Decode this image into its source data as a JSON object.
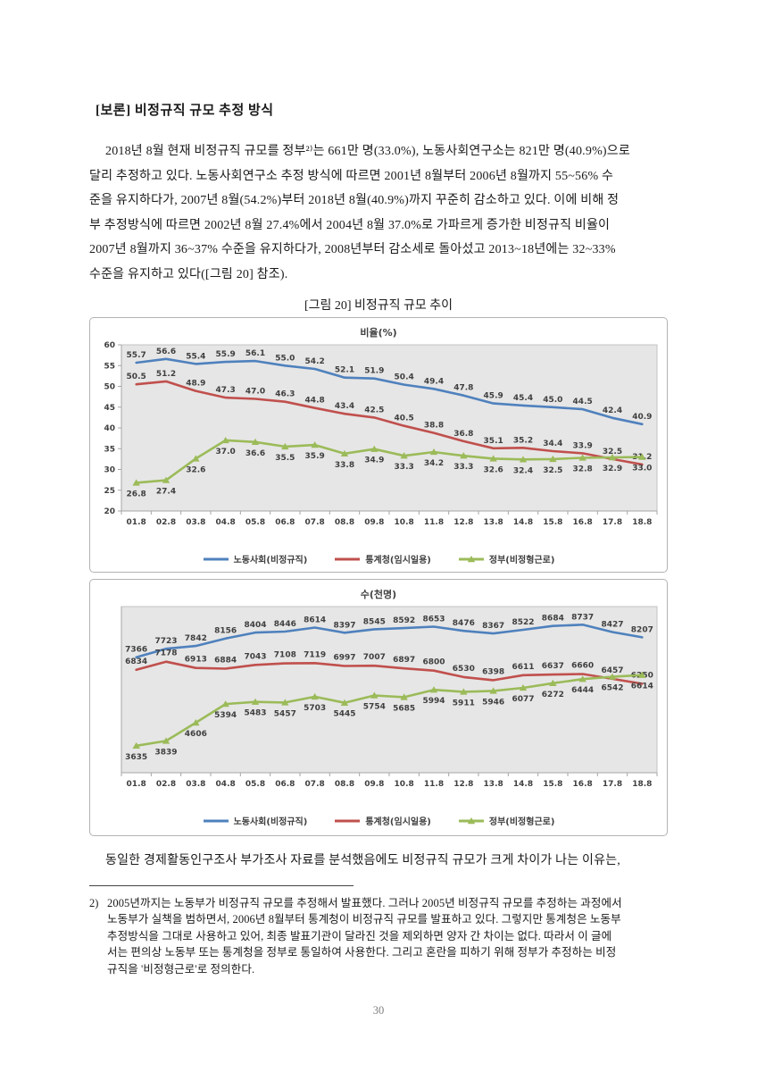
{
  "page": {
    "heading": "[보론] 비정규직 규모 추정 방식",
    "para1_lines": [
      "2018년 8월 현재 비정규직 규모를 정부²⁾는 661만 명(33.0%), 노동사회연구소는 821만 명(40.9%)으로",
      "달리 추정하고 있다. 노동사회연구소 추정 방식에 따르면 2001년 8월부터 2006년 8월까지 55~56% 수",
      "준을 유지하다가, 2007년 8월(54.2%)부터 2018년 8월(40.9%)까지 꾸준히 감소하고 있다. 이에 비해 정",
      "부 추정방식에 따르면 2002년 8월 27.4%에서 2004년 8월 37.0%로 가파르게 증가한 비정규직 비율이",
      "2007년 8월까지 36~37% 수준을 유지하다가, 2008년부터 감소세로 돌아섰고 2013~18년에는 32~33%",
      "수준을 유지하고 있다([그림 20] 참조)."
    ],
    "figure_caption": "[그림 20] 비정규직 규모 추이",
    "paragraph2": "동일한 경제활동인구조사 부가조사 자료를 분석했음에도 비정규직 규모가 크게 차이가 나는 이유는,",
    "footnote_marker": "2)",
    "footnote_lines": [
      "2005년까지는 노동부가 비정규직 규모를 추정해서 발표했다. 그러나 2005년 비정규직 규모를 추정하는 과정에서",
      "노동부가 실책을 범하면서, 2006년 8월부터 통계청이 비정규직 규모를 발표하고 있다. 그렇지만 통계청은 노동부",
      "추정방식을 그대로 사용하고 있어, 최종 발표기관이 달라진 것을 제외하면 양자 간 차이는 없다. 따라서 이 글에",
      "서는 편의상 노동부 또는 통계청을 정부로 통일하여 사용한다. 그리고 혼란을 피하기 위해 정부가 추정하는 비정",
      "규직을 '비정형근로'로 정의한다."
    ],
    "page_number": "30"
  },
  "chart_data": [
    {
      "type": "line",
      "title": "비율(%)",
      "categories": [
        "01.8",
        "02.8",
        "03.8",
        "04.8",
        "05.8",
        "06.8",
        "07.8",
        "08.8",
        "09.8",
        "10.8",
        "11.8",
        "12.8",
        "13.8",
        "14.8",
        "15.8",
        "16.8",
        "17.8",
        "18.8"
      ],
      "series": [
        {
          "name": "노동사회(비정규직)",
          "color": "#4F81BD",
          "label_dy": -6,
          "values": [
            55.7,
            56.6,
            55.4,
            55.9,
            56.1,
            55.0,
            54.2,
            52.1,
            51.9,
            50.4,
            49.4,
            47.8,
            45.9,
            45.4,
            45.0,
            44.5,
            42.4,
            40.9
          ]
        },
        {
          "name": "통계청(임시일용)",
          "color": "#C0504D",
          "label_dy": -6,
          "values": [
            50.5,
            51.2,
            48.9,
            47.3,
            47.0,
            46.3,
            44.8,
            43.4,
            42.5,
            40.5,
            38.8,
            36.8,
            35.1,
            35.2,
            34.4,
            33.9,
            32.5,
            31.2
          ]
        },
        {
          "name": "정부(비정형근로)",
          "color": "#9BBB59",
          "marker": "triangle",
          "label_dy": 15,
          "values": [
            26.8,
            27.4,
            32.6,
            37.0,
            36.6,
            35.5,
            35.9,
            33.8,
            34.9,
            33.3,
            34.2,
            33.3,
            32.6,
            32.4,
            32.5,
            32.8,
            32.9,
            33.0
          ]
        }
      ],
      "ylim": [
        20,
        60
      ],
      "yticks": [
        20,
        25,
        30,
        35,
        40,
        45,
        50,
        55,
        60
      ],
      "label_format": "fixed1",
      "legend_position": "bottom",
      "grid": false,
      "plot_bg": "#e6e6e6"
    },
    {
      "type": "line",
      "title": "수(천명)",
      "categories": [
        "01.8",
        "02.8",
        "03.8",
        "04.8",
        "05.8",
        "06.8",
        "07.8",
        "08.8",
        "09.8",
        "10.8",
        "11.8",
        "12.8",
        "13.8",
        "14.8",
        "15.8",
        "16.8",
        "17.8",
        "18.8"
      ],
      "series": [
        {
          "name": "노동사회(비정규직)",
          "color": "#4F81BD",
          "label_dy": -6,
          "values": [
            7366,
            7723,
            7842,
            8156,
            8404,
            8446,
            8614,
            8397,
            8545,
            8592,
            8653,
            8476,
            8367,
            8522,
            8684,
            8737,
            8427,
            8207
          ]
        },
        {
          "name": "통계청(임시일용)",
          "color": "#C0504D",
          "label_dy": -7,
          "values": [
            6834,
            7178,
            6913,
            6884,
            7043,
            7108,
            7119,
            6997,
            7007,
            6897,
            6800,
            6530,
            6398,
            6611,
            6637,
            6660,
            6457,
            6250
          ]
        },
        {
          "name": "정부(비정형근로)",
          "color": "#9BBB59",
          "marker": "triangle",
          "label_dy": 15,
          "values": [
            3635,
            3839,
            4606,
            5394,
            5483,
            5457,
            5703,
            5445,
            5754,
            5685,
            5994,
            5911,
            5946,
            6077,
            6272,
            6444,
            6542,
            6614
          ]
        }
      ],
      "ylim": [
        2500,
        9500
      ],
      "yticks": [],
      "label_format": "int",
      "legend_position": "bottom",
      "grid": false,
      "plot_bg": "#e6e6e6"
    }
  ]
}
